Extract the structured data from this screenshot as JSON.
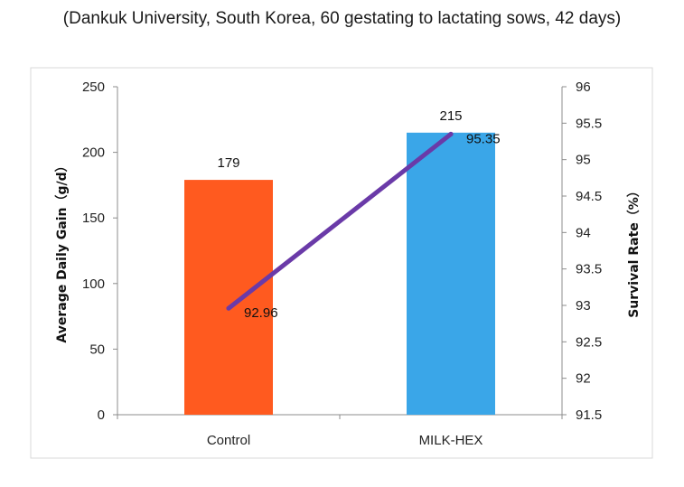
{
  "chart_data": {
    "type": "bar",
    "subtitle": "(Dankuk University, South Korea, 60 gestating to lactating sows, 42 days)",
    "categories": [
      "Control",
      "MILK-HEX"
    ],
    "series": [
      {
        "name": "Average Daily Gain",
        "kind": "bar",
        "axis": "left",
        "values": [
          179,
          215
        ],
        "colors": [
          "#ff5a1f",
          "#3aa6e8"
        ],
        "labels": [
          "179",
          "215"
        ]
      },
      {
        "name": "Survival Rate",
        "kind": "line",
        "axis": "right",
        "values": [
          92.96,
          95.35
        ],
        "color": "#6a3aa8",
        "labels": [
          "92.96",
          "95.35"
        ]
      }
    ],
    "ylabel": "Average Daily Gain（g/d）",
    "y2label": "Survival Rate（%）",
    "ylim": [
      0,
      250
    ],
    "y2lim": [
      91.5,
      96
    ],
    "yticks": [
      "0",
      "50",
      "100",
      "150",
      "200",
      "250"
    ],
    "y2ticks": [
      "91.5",
      "92",
      "92.5",
      "93",
      "93.5",
      "94",
      "94.5",
      "95",
      "95.5",
      "96"
    ],
    "grid": false,
    "legend": "none"
  }
}
